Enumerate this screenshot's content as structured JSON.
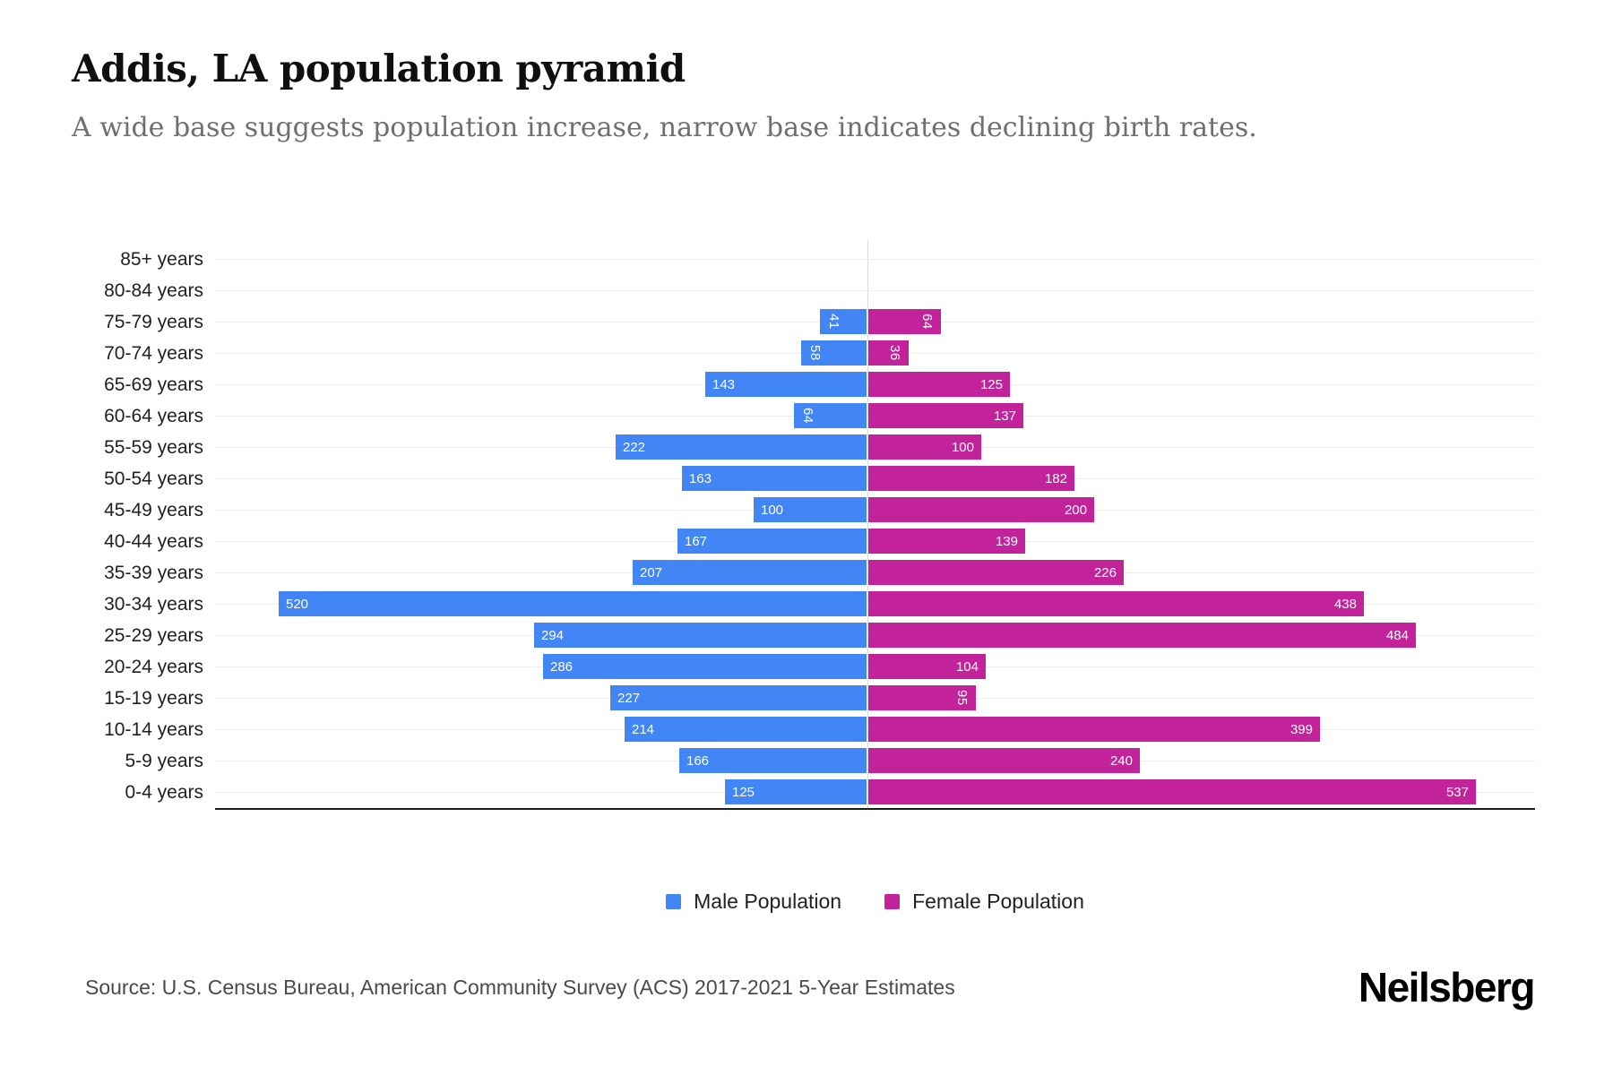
{
  "header": {
    "title": "Addis, LA population pyramid",
    "subtitle": "A wide base suggests population increase, narrow base indicates declining birth rates."
  },
  "legend": {
    "items": [
      {
        "label": "Male Population",
        "color": "#4285f4"
      },
      {
        "label": "Female Population",
        "color": "#c2239a"
      }
    ]
  },
  "footer": {
    "source": "Source: U.S. Census Bureau, American Community Survey (ACS) 2017-2021 5-Year Estimates",
    "brand": "Neilsberg"
  },
  "chart_data": {
    "type": "bar",
    "variant": "population-pyramid",
    "title": "Addis, LA population pyramid",
    "subtitle": "A wide base suggests population increase, narrow base indicates declining birth rates.",
    "categories": [
      "85+ years",
      "80-84 years",
      "75-79 years",
      "70-74 years",
      "65-69 years",
      "60-64 years",
      "55-59 years",
      "50-54 years",
      "45-49 years",
      "40-44 years",
      "35-39 years",
      "30-34 years",
      "25-29 years",
      "20-24 years",
      "15-19 years",
      "10-14 years",
      "5-9 years",
      "0-4 years"
    ],
    "series": [
      {
        "name": "Male Population",
        "side": "left",
        "color": "#4285f4",
        "values": [
          0,
          0,
          41,
          58,
          143,
          64,
          222,
          163,
          100,
          167,
          207,
          520,
          294,
          286,
          227,
          214,
          166,
          125
        ]
      },
      {
        "name": "Female Population",
        "side": "right",
        "color": "#c2239a",
        "values": [
          0,
          0,
          64,
          36,
          125,
          137,
          100,
          182,
          200,
          139,
          226,
          438,
          484,
          104,
          95,
          399,
          240,
          537
        ]
      }
    ],
    "xlabel": "",
    "ylabel": "",
    "xlim": [
      0,
      590
    ],
    "grid": "horizontal row lines + faint center vertical axis",
    "legend_position": "bottom-center",
    "value_label_style": "white, inside bar at outer end, rotated vertical when value < 100, hidden when 0"
  }
}
